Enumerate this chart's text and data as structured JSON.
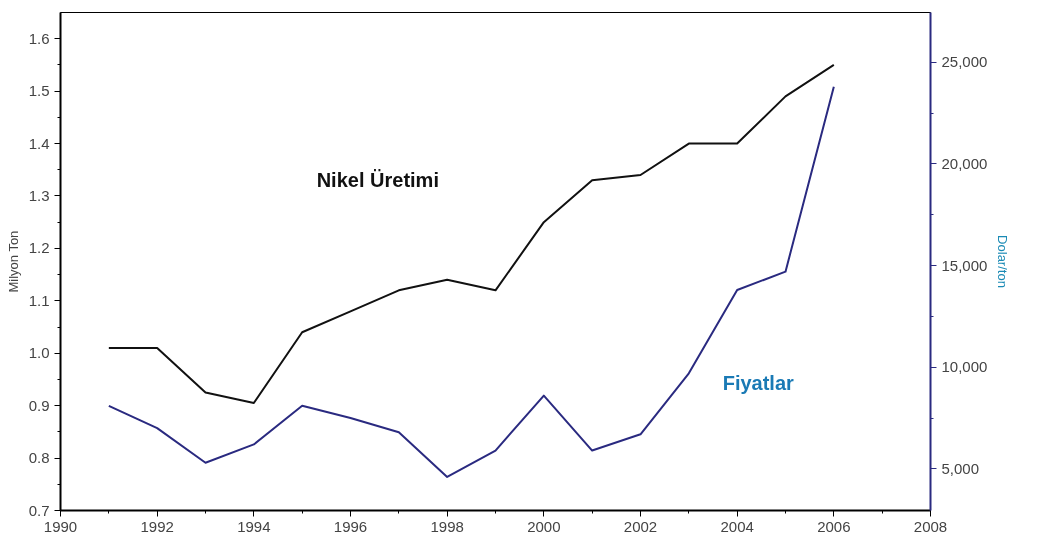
{
  "chart_data": {
    "type": "line",
    "ylabel": "Milyon Ton",
    "y2label": "Dolar/ton",
    "x": [
      1991,
      1992,
      1993,
      1994,
      1995,
      1996,
      1997,
      1998,
      1999,
      2000,
      2001,
      2002,
      2003,
      2004,
      2005,
      2006
    ],
    "series": [
      {
        "name": "Nikel Üretimi",
        "color": "#111111",
        "values": [
          1.01,
          1.01,
          0.925,
          0.905,
          1.04,
          1.08,
          1.12,
          1.14,
          1.12,
          1.25,
          1.33,
          1.34,
          1.4,
          1.4,
          1.49,
          1.55
        ]
      },
      {
        "name": "Fiyatlar",
        "color": "#2a2a80",
        "axis": "y2",
        "values": [
          8100,
          7000,
          5300,
          6200,
          8100,
          7500,
          6800,
          4600,
          5900,
          8600,
          5900,
          6700,
          9700,
          13800,
          14700,
          23800
        ]
      }
    ],
    "xlim": [
      1990,
      2008
    ],
    "xticks": [
      1990,
      1992,
      1994,
      1996,
      1998,
      2000,
      2002,
      2004,
      2006,
      2008
    ],
    "ylim": [
      0.7,
      1.65
    ],
    "yticks": [
      {
        "value": 0.7,
        "label": "0.7"
      },
      {
        "value": 0.8,
        "label": "0.8"
      },
      {
        "value": 0.9,
        "label": "0.9"
      },
      {
        "value": 1.0,
        "label": "1.0"
      },
      {
        "value": 1.1,
        "label": "1.1"
      },
      {
        "value": 1.2,
        "label": "1.2"
      },
      {
        "value": 1.3,
        "label": "1.3"
      },
      {
        "value": 1.4,
        "label": "1.4"
      },
      {
        "value": 1.5,
        "label": "1.5"
      },
      {
        "value": 1.6,
        "label": "1.6"
      }
    ],
    "y2lim": [
      2950,
      27450
    ],
    "y2ticks": [
      {
        "value": 5000,
        "label": "5,000"
      },
      {
        "value": 10000,
        "label": "10,000"
      },
      {
        "value": 15000,
        "label": "15,000"
      },
      {
        "value": 20000,
        "label": "20,000"
      },
      {
        "value": 25000,
        "label": "25,000"
      }
    ],
    "grid": false,
    "marker": "none",
    "line_style": "solid"
  }
}
